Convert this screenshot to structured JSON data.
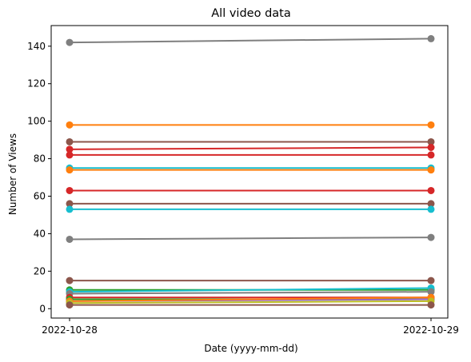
{
  "chart_data": {
    "type": "line",
    "title": "All video data",
    "xlabel": "Date (yyyy-mm-dd)",
    "ylabel": "Number of Views",
    "categories": [
      "2022-10-28",
      "2022-10-29"
    ],
    "ylim": [
      -5,
      151
    ],
    "yticks": [
      0,
      20,
      40,
      60,
      80,
      100,
      120,
      140
    ],
    "grid": false,
    "legend": "none",
    "series": [
      {
        "color": "#7f7f7f",
        "values": [
          142,
          144
        ]
      },
      {
        "color": "#ff7f0e",
        "values": [
          98,
          98
        ]
      },
      {
        "color": "#8c564b",
        "values": [
          89,
          89
        ]
      },
      {
        "color": "#d62728",
        "values": [
          85,
          86
        ]
      },
      {
        "color": "#d62728",
        "values": [
          82,
          82
        ]
      },
      {
        "color": "#17becf",
        "values": [
          75,
          75
        ]
      },
      {
        "color": "#ff7f0e",
        "values": [
          74,
          74
        ]
      },
      {
        "color": "#d62728",
        "values": [
          63,
          63
        ]
      },
      {
        "color": "#8c564b",
        "values": [
          56,
          56
        ]
      },
      {
        "color": "#17becf",
        "values": [
          53,
          53
        ]
      },
      {
        "color": "#7f7f7f",
        "values": [
          37,
          38
        ]
      },
      {
        "color": "#8c564b",
        "values": [
          15,
          15
        ]
      },
      {
        "color": "#2ca02c",
        "values": [
          10,
          10
        ]
      },
      {
        "color": "#17becf",
        "values": [
          9,
          11
        ]
      },
      {
        "color": "#7f7f7f",
        "values": [
          8,
          9
        ]
      },
      {
        "color": "#d62728",
        "values": [
          6,
          6
        ]
      },
      {
        "color": "#2ca02c",
        "values": [
          5,
          5
        ]
      },
      {
        "color": "#9467bd",
        "values": [
          4,
          5
        ]
      },
      {
        "color": "#ff7f0e",
        "values": [
          4,
          6
        ]
      },
      {
        "color": "#bcbd22",
        "values": [
          3,
          4
        ]
      },
      {
        "color": "#8c564b",
        "values": [
          2,
          2
        ]
      }
    ]
  }
}
